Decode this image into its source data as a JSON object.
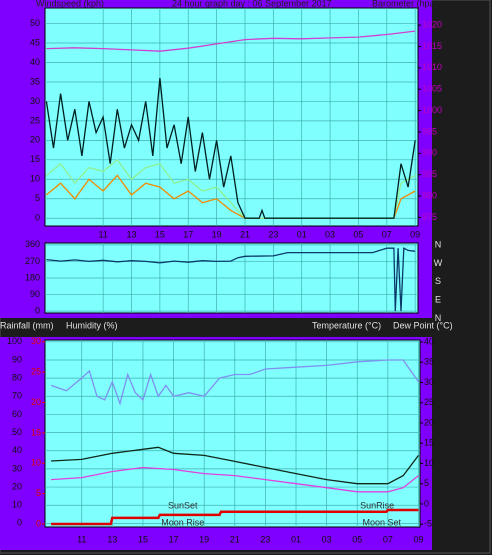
{
  "chart_data": [
    {
      "type": "line",
      "title": "24 hour graph day : 06 September 2017",
      "y_label": "Windspeed (kph)",
      "y2_label": "Barometer (hpa)",
      "xlim": [
        6.9,
        33.2
      ],
      "xticks": [
        11,
        13,
        15,
        17,
        19,
        21,
        23,
        {
          "value": 25,
          "label": "01"
        },
        {
          "value": 27,
          "label": "03"
        },
        {
          "value": 29,
          "label": "05"
        },
        {
          "value": 31,
          "label": "07"
        },
        {
          "value": 33,
          "label": "09"
        }
      ],
      "ylim": [
        -2,
        54
      ],
      "yticks": [
        0,
        5,
        10,
        15,
        20,
        25,
        30,
        35,
        40,
        45,
        50
      ],
      "y2lim": [
        973,
        1024
      ],
      "y2ticks": [
        975,
        980,
        985,
        990,
        995,
        1000,
        1005,
        1010,
        1015,
        1020
      ],
      "grid": true,
      "series": [
        {
          "color": "#f08c00",
          "x": [
            7,
            8,
            9,
            10,
            11,
            12,
            13,
            14,
            15,
            16,
            17,
            18,
            19,
            20,
            21,
            22,
            24,
            26,
            28,
            30,
            31.5,
            32,
            33
          ],
          "values": [
            6,
            9,
            5,
            10,
            7,
            11,
            6,
            9,
            8,
            5,
            7,
            4,
            5,
            2,
            0,
            0,
            0,
            0,
            0,
            0,
            0,
            5,
            7
          ]
        },
        {
          "color": "#90f090",
          "x": [
            7,
            8,
            9,
            10,
            11,
            12,
            13,
            14,
            15,
            16,
            17,
            18,
            19,
            20,
            21,
            22,
            24,
            26,
            28,
            30,
            31.5,
            32,
            33
          ],
          "values": [
            11,
            14,
            9,
            13,
            12,
            15,
            10,
            13,
            14,
            9,
            10,
            7,
            8,
            4,
            0,
            0,
            0,
            0,
            0,
            0,
            0,
            9,
            11
          ]
        },
        {
          "color": "#002020",
          "x": [
            7,
            7.5,
            8,
            8.5,
            9,
            9.5,
            10,
            10.5,
            11,
            11.5,
            12,
            12.5,
            13,
            13.5,
            14,
            14.5,
            15,
            15.5,
            16,
            16.5,
            17,
            17.5,
            18,
            18.5,
            19,
            19.5,
            20,
            20.5,
            21,
            22,
            22.2,
            22.4,
            24,
            26,
            28,
            30,
            31.5,
            32,
            32.5,
            33
          ],
          "values": [
            30,
            18,
            32,
            20,
            28,
            16,
            30,
            22,
            26,
            14,
            28,
            18,
            24,
            20,
            30,
            16,
            36,
            18,
            24,
            14,
            26,
            12,
            22,
            10,
            20,
            8,
            16,
            4,
            0,
            0,
            2,
            0,
            0,
            0,
            0,
            0,
            0,
            14,
            8,
            20
          ]
        },
        {
          "color": "#d040d0",
          "axis": "y2",
          "x": [
            7,
            9,
            11,
            13,
            15,
            17,
            19,
            21,
            23,
            25,
            27,
            29,
            31,
            33
          ],
          "values": [
            1014.5,
            1014.7,
            1014.5,
            1014.2,
            1013.9,
            1014.6,
            1015.6,
            1016.6,
            1016.9,
            1016.8,
            1017.0,
            1017.2,
            1017.8,
            1018.6
          ]
        }
      ]
    },
    {
      "type": "line",
      "xlim": [
        6.9,
        33.2
      ],
      "ylim": [
        -10,
        370
      ],
      "yticks": [
        0,
        90,
        180,
        270,
        360
      ],
      "grid": true,
      "side_labels": [
        "N",
        "W",
        "S",
        "E",
        "N"
      ],
      "series": [
        {
          "color": "#0a3a6a",
          "x": [
            7,
            8,
            9,
            10,
            11,
            12,
            13,
            14,
            15,
            16,
            17,
            18,
            19,
            20,
            20.5,
            21,
            23,
            24,
            26,
            28,
            30,
            31,
            31.5,
            31.6,
            31.8,
            32,
            32.2,
            32.5,
            33
          ],
          "values": [
            280,
            272,
            278,
            270,
            276,
            268,
            274,
            270,
            262,
            272,
            266,
            274,
            270,
            272,
            290,
            298,
            300,
            318,
            318,
            318,
            318,
            342,
            342,
            0,
            342,
            0,
            342,
            330,
            325
          ]
        }
      ]
    },
    {
      "type": "line",
      "y_labels": [
        "Rainfall (mm)",
        "Humidity (%)"
      ],
      "y2_labels": [
        "Temperature (°C)",
        "Dew Point (°C)"
      ],
      "xlim": [
        8.6,
        33.1
      ],
      "xticks": [
        11,
        13,
        15,
        17,
        19,
        21,
        23,
        {
          "value": 25,
          "label": "01"
        },
        {
          "value": 27,
          "label": "03"
        },
        {
          "value": 29,
          "label": "05"
        },
        {
          "value": 31,
          "label": "07"
        },
        {
          "value": 33,
          "label": "09"
        }
      ],
      "ylim": [
        -2,
        101
      ],
      "yticks": [
        0,
        10,
        20,
        30,
        40,
        50,
        60,
        70,
        80,
        90,
        100
      ],
      "y3lim": [
        -0.5,
        30.3
      ],
      "y3ticks": [
        0,
        5,
        10,
        15,
        20,
        25,
        30
      ],
      "y2lim": [
        -5.7,
        40.5
      ],
      "y2ticks": [
        -5,
        0,
        5,
        10,
        15,
        20,
        25,
        30,
        35,
        40
      ],
      "grid": true,
      "annotations": [
        {
          "text": "SunSet",
          "x": 17.6,
          "pos": "top"
        },
        {
          "text": "SunRise",
          "x": 30.3,
          "pos": "top"
        },
        {
          "text": "Moon Rise",
          "x": 17.6,
          "pos": "bottom"
        },
        {
          "text": "Moon Set",
          "x": 30.6,
          "pos": "bottom"
        }
      ],
      "series": [
        {
          "color": "#8090f0",
          "x": [
            9,
            10,
            11,
            11.5,
            12,
            12.5,
            13,
            13.5,
            14,
            14.5,
            15,
            15.5,
            16,
            16.5,
            17,
            18,
            19,
            20,
            21,
            22,
            23,
            25,
            27,
            29,
            31,
            32,
            32.5,
            33
          ],
          "values": [
            76,
            73,
            80,
            84,
            70,
            68,
            78,
            66,
            82,
            72,
            68,
            82,
            70,
            76,
            70,
            72,
            70,
            80,
            82,
            82,
            85,
            86,
            87,
            89,
            90,
            90,
            84,
            78
          ]
        },
        {
          "color": "#102818",
          "axis": "y2",
          "x": [
            9,
            11,
            13,
            15,
            16,
            17,
            19,
            21,
            23,
            25,
            27,
            29,
            31,
            32,
            33
          ],
          "values": [
            10.6,
            11,
            12.5,
            13.5,
            14,
            12.5,
            12,
            10.5,
            9,
            7.5,
            6,
            5,
            5,
            7,
            12
          ]
        },
        {
          "color": "#e040e0",
          "axis": "y2",
          "x": [
            9,
            11,
            13,
            15,
            17,
            19,
            21,
            23,
            25,
            27,
            29,
            31,
            32,
            33
          ],
          "values": [
            6,
            6.5,
            8,
            9,
            8.5,
            7.5,
            7,
            6,
            5,
            4,
            3,
            3,
            4,
            7
          ]
        },
        {
          "color": "#e00000",
          "axis": "y3",
          "width": 2.5,
          "x": [
            9,
            12.9,
            13,
            16,
            16.1,
            20,
            20.1,
            30.9,
            31,
            33
          ],
          "values": [
            0,
            0,
            1,
            1,
            1.5,
            1.5,
            2,
            2,
            2.3,
            2.3
          ]
        }
      ]
    }
  ]
}
